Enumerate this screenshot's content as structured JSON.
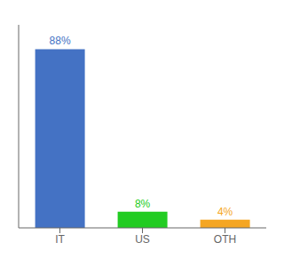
{
  "chart_data": {
    "type": "bar",
    "categories": [
      "IT",
      "US",
      "OTH"
    ],
    "values": [
      88,
      8,
      4
    ],
    "value_labels": [
      "88%",
      "8%",
      "4%"
    ],
    "colors": [
      "#4472c4",
      "#22cc22",
      "#f5a623"
    ],
    "ylim": [
      0,
      100
    ],
    "data_labels": true,
    "tick_labels": "x",
    "grid": false
  }
}
